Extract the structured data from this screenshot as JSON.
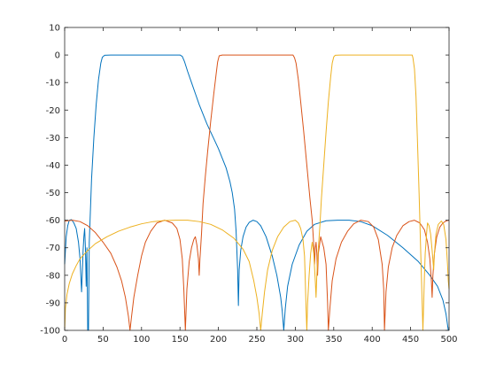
{
  "chart_data": {
    "type": "line",
    "title": "",
    "xlabel": "",
    "ylabel": "",
    "xlim": [
      0,
      500
    ],
    "ylim": [
      -100,
      10
    ],
    "xticks": [
      0,
      50,
      100,
      150,
      200,
      250,
      300,
      350,
      400,
      450,
      500
    ],
    "yticks": [
      -100,
      -90,
      -80,
      -70,
      -60,
      -50,
      -40,
      -30,
      -20,
      -10,
      0,
      10
    ],
    "grid": false,
    "legend": "none",
    "series": [
      {
        "color": "#0072BD",
        "points": [
          [
            0,
            -76
          ],
          [
            2,
            -66
          ],
          [
            4,
            -62
          ],
          [
            6,
            -60
          ],
          [
            9,
            -59.8
          ],
          [
            12,
            -61
          ],
          [
            15,
            -63
          ],
          [
            18,
            -68
          ],
          [
            20,
            -74
          ],
          [
            21,
            -80
          ],
          [
            22,
            -86
          ],
          [
            23,
            -79
          ],
          [
            24,
            -71
          ],
          [
            25,
            -66
          ],
          [
            26,
            -63
          ],
          [
            27,
            -70
          ],
          [
            28,
            -84
          ],
          [
            29,
            -70
          ],
          [
            30,
            -100
          ],
          [
            31,
            -100
          ],
          [
            32,
            -68
          ],
          [
            35,
            -45
          ],
          [
            38,
            -30
          ],
          [
            41,
            -18
          ],
          [
            44,
            -9
          ],
          [
            47,
            -3
          ],
          [
            49,
            -0.8
          ],
          [
            52,
            -0.1
          ],
          [
            60,
            0
          ],
          [
            100,
            0
          ],
          [
            150,
            0
          ],
          [
            153,
            -0.5
          ],
          [
            156,
            -2.5
          ],
          [
            160,
            -6
          ],
          [
            165,
            -10
          ],
          [
            170,
            -14
          ],
          [
            175,
            -18
          ],
          [
            180,
            -21.5
          ],
          [
            185,
            -25
          ],
          [
            190,
            -28
          ],
          [
            195,
            -31
          ],
          [
            200,
            -34
          ],
          [
            205,
            -37.5
          ],
          [
            210,
            -41
          ],
          [
            215,
            -46
          ],
          [
            218,
            -50
          ],
          [
            221,
            -56
          ],
          [
            223,
            -64
          ],
          [
            225,
            -78
          ],
          [
            226,
            -91
          ],
          [
            227,
            -78
          ],
          [
            229,
            -71
          ],
          [
            232,
            -66
          ],
          [
            236,
            -62.5
          ],
          [
            240,
            -60.8
          ],
          [
            245,
            -60
          ],
          [
            250,
            -60.5
          ],
          [
            255,
            -62
          ],
          [
            262,
            -66
          ],
          [
            270,
            -73
          ],
          [
            276,
            -80
          ],
          [
            281,
            -88
          ],
          [
            283,
            -93
          ],
          [
            285,
            -100
          ],
          [
            287,
            -92
          ],
          [
            290,
            -84
          ],
          [
            296,
            -76
          ],
          [
            305,
            -69
          ],
          [
            315,
            -64
          ],
          [
            325,
            -61.5
          ],
          [
            340,
            -60.2
          ],
          [
            355,
            -60
          ],
          [
            370,
            -60
          ],
          [
            385,
            -60.5
          ],
          [
            400,
            -62
          ],
          [
            420,
            -65.5
          ],
          [
            440,
            -70
          ],
          [
            460,
            -75
          ],
          [
            475,
            -80
          ],
          [
            485,
            -84
          ],
          [
            492,
            -89
          ],
          [
            496,
            -94
          ],
          [
            499,
            -100
          ]
        ]
      },
      {
        "color": "#D95319",
        "points": [
          [
            0,
            -60.3
          ],
          [
            10,
            -60
          ],
          [
            20,
            -60.5
          ],
          [
            30,
            -62
          ],
          [
            40,
            -64.5
          ],
          [
            50,
            -68
          ],
          [
            60,
            -72
          ],
          [
            68,
            -77
          ],
          [
            74,
            -82
          ],
          [
            79,
            -88
          ],
          [
            83,
            -95
          ],
          [
            85,
            -100
          ],
          [
            87,
            -95
          ],
          [
            90,
            -88
          ],
          [
            95,
            -80
          ],
          [
            100,
            -73
          ],
          [
            105,
            -68
          ],
          [
            112,
            -64
          ],
          [
            120,
            -61
          ],
          [
            130,
            -60
          ],
          [
            140,
            -61
          ],
          [
            146,
            -63
          ],
          [
            150,
            -67
          ],
          [
            153,
            -74
          ],
          [
            155,
            -85
          ],
          [
            157,
            -100
          ],
          [
            159,
            -85
          ],
          [
            162,
            -75
          ],
          [
            165,
            -70
          ],
          [
            168,
            -67
          ],
          [
            170,
            -66
          ],
          [
            172,
            -69
          ],
          [
            174,
            -74
          ],
          [
            175,
            -80
          ],
          [
            176,
            -74
          ],
          [
            178,
            -65
          ],
          [
            180,
            -54
          ],
          [
            183,
            -44
          ],
          [
            186,
            -35
          ],
          [
            190,
            -24
          ],
          [
            194,
            -14
          ],
          [
            197,
            -7
          ],
          [
            199,
            -2.5
          ],
          [
            201,
            -0.3
          ],
          [
            205,
            0
          ],
          [
            250,
            0
          ],
          [
            297,
            0
          ],
          [
            299,
            -1
          ],
          [
            301,
            -3
          ],
          [
            304,
            -9
          ],
          [
            307,
            -17
          ],
          [
            311,
            -28
          ],
          [
            315,
            -40
          ],
          [
            319,
            -52
          ],
          [
            322,
            -60
          ],
          [
            324,
            -69
          ],
          [
            325,
            -76
          ],
          [
            326,
            -70
          ],
          [
            327,
            -68
          ],
          [
            328,
            -72
          ],
          [
            329,
            -80
          ],
          [
            330,
            -72
          ],
          [
            333,
            -66
          ],
          [
            337,
            -70
          ],
          [
            340,
            -76
          ],
          [
            342,
            -90
          ],
          [
            343,
            -100
          ],
          [
            345,
            -92
          ],
          [
            348,
            -82
          ],
          [
            353,
            -74
          ],
          [
            360,
            -68
          ],
          [
            368,
            -64
          ],
          [
            376,
            -61.3
          ],
          [
            385,
            -60
          ],
          [
            395,
            -60.5
          ],
          [
            402,
            -62.5
          ],
          [
            408,
            -67
          ],
          [
            413,
            -76
          ],
          [
            415,
            -85
          ],
          [
            416,
            -100
          ],
          [
            418,
            -86
          ],
          [
            421,
            -77
          ],
          [
            426,
            -70
          ],
          [
            432,
            -65.5
          ],
          [
            440,
            -62
          ],
          [
            448,
            -60.5
          ],
          [
            455,
            -60
          ],
          [
            462,
            -61
          ],
          [
            468,
            -63.5
          ],
          [
            472,
            -68
          ],
          [
            475,
            -74
          ],
          [
            477,
            -82
          ],
          [
            478,
            -88
          ],
          [
            479,
            -80
          ],
          [
            481,
            -72
          ],
          [
            484,
            -66
          ],
          [
            488,
            -62.5
          ],
          [
            492,
            -61
          ],
          [
            496,
            -60.3
          ],
          [
            500,
            -60
          ]
        ]
      },
      {
        "color": "#EDB120",
        "points": [
          [
            0,
            -100
          ],
          [
            1,
            -92
          ],
          [
            3,
            -87
          ],
          [
            6,
            -83
          ],
          [
            10,
            -79.5
          ],
          [
            15,
            -76.5
          ],
          [
            20,
            -74
          ],
          [
            30,
            -71
          ],
          [
            40,
            -68.5
          ],
          [
            55,
            -66
          ],
          [
            70,
            -64
          ],
          [
            85,
            -62.5
          ],
          [
            100,
            -61.3
          ],
          [
            115,
            -60.5
          ],
          [
            130,
            -60.1
          ],
          [
            145,
            -60
          ],
          [
            160,
            -60
          ],
          [
            175,
            -60.5
          ],
          [
            190,
            -61.5
          ],
          [
            205,
            -63.5
          ],
          [
            220,
            -66.5
          ],
          [
            232,
            -70.5
          ],
          [
            240,
            -75
          ],
          [
            246,
            -82
          ],
          [
            250,
            -88
          ],
          [
            253,
            -94
          ],
          [
            255,
            -100
          ],
          [
            257,
            -94
          ],
          [
            260,
            -86
          ],
          [
            264,
            -78
          ],
          [
            270,
            -71
          ],
          [
            277,
            -66
          ],
          [
            285,
            -62.5
          ],
          [
            293,
            -60.5
          ],
          [
            300,
            -60
          ],
          [
            304,
            -61
          ],
          [
            307,
            -63
          ],
          [
            310,
            -67
          ],
          [
            312,
            -73
          ],
          [
            313,
            -82
          ],
          [
            314,
            -92
          ],
          [
            315,
            -100
          ],
          [
            316,
            -90
          ],
          [
            318,
            -80
          ],
          [
            320,
            -72
          ],
          [
            322,
            -68
          ],
          [
            324,
            -72
          ],
          [
            326,
            -82
          ],
          [
            327,
            -88
          ],
          [
            328,
            -80
          ],
          [
            330,
            -70
          ],
          [
            332,
            -62
          ],
          [
            334,
            -52
          ],
          [
            337,
            -40
          ],
          [
            340,
            -28
          ],
          [
            343,
            -17
          ],
          [
            346,
            -8
          ],
          [
            348,
            -3
          ],
          [
            350,
            -0.7
          ],
          [
            352,
            -0.1
          ],
          [
            360,
            0
          ],
          [
            400,
            0
          ],
          [
            452,
            0
          ],
          [
            453,
            -1
          ],
          [
            455,
            -5
          ],
          [
            457,
            -15
          ],
          [
            459,
            -32
          ],
          [
            461,
            -50
          ],
          [
            462,
            -60
          ],
          [
            463,
            -70
          ],
          [
            464,
            -80
          ],
          [
            465,
            -90
          ],
          [
            466,
            -100
          ],
          [
            467,
            -90
          ],
          [
            468,
            -80
          ],
          [
            469,
            -72
          ],
          [
            470,
            -68
          ],
          [
            471,
            -64
          ],
          [
            472,
            -61
          ],
          [
            474,
            -62
          ],
          [
            476,
            -65
          ],
          [
            478,
            -71
          ],
          [
            480,
            -78
          ],
          [
            481,
            -72
          ],
          [
            483,
            -65
          ],
          [
            486,
            -61.5
          ],
          [
            490,
            -60.3
          ],
          [
            493,
            -61.5
          ],
          [
            496,
            -67
          ],
          [
            498,
            -76
          ],
          [
            499,
            -82
          ],
          [
            500,
            -85
          ]
        ]
      }
    ]
  }
}
